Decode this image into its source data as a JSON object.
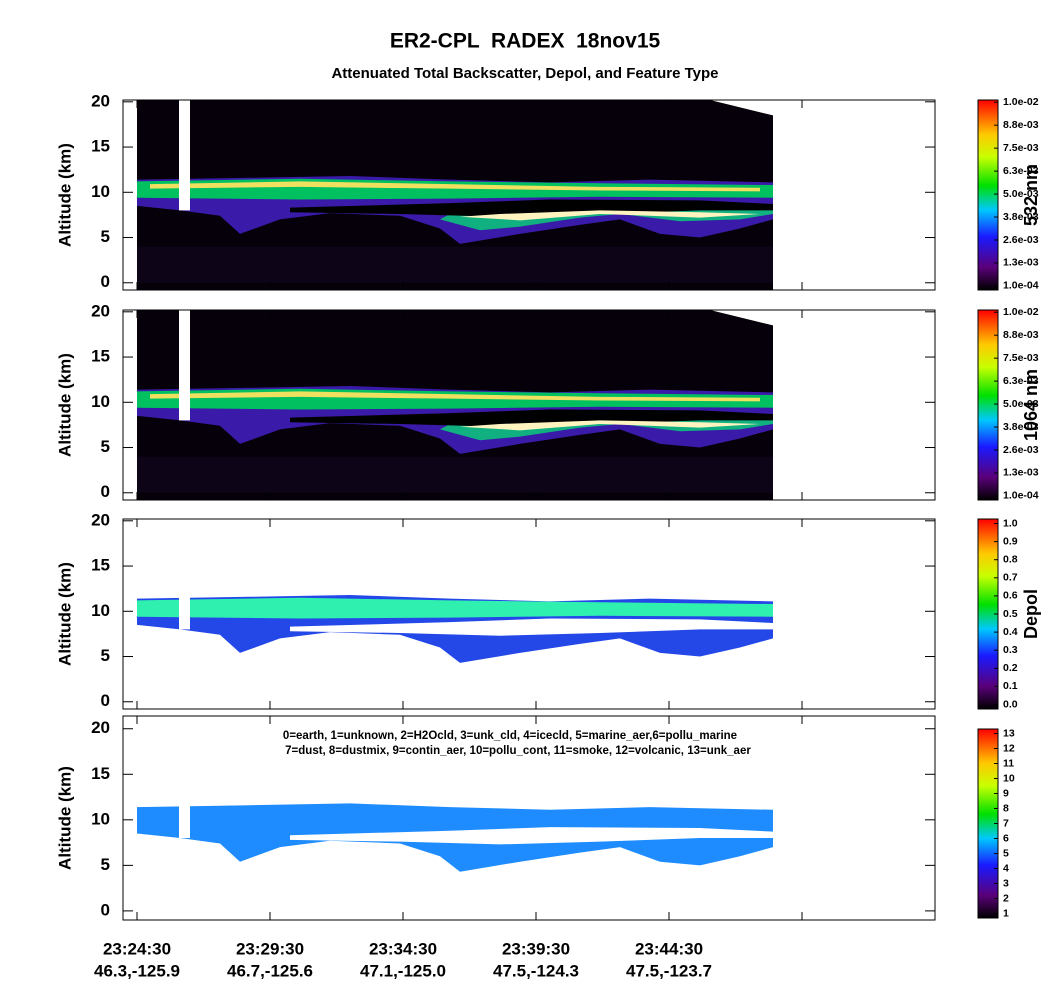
{
  "title": "ER2-CPL  RADEX  18nov15",
  "subtitle": "Attenuated Total Backscatter, Depol, and Feature Type",
  "x_axis": {
    "times": [
      "23:24:30",
      "23:29:30",
      "23:34:30",
      "23:39:30",
      "23:44:30",
      null,
      null
    ],
    "locations": [
      "46.3,-125.9",
      "46.7,-125.6",
      "47.1,-125.0",
      "47.5,-124.3",
      "47.5,-123.7",
      null,
      null
    ]
  },
  "chart_data": [
    {
      "type": "curtain",
      "ylabel": "Altitude (km)",
      "ylim": [
        -0.8,
        20.2
      ],
      "yticks": [
        0,
        5,
        10,
        15,
        20
      ],
      "colorbar": {
        "label": "532 nm",
        "lim": [
          -0.00012,
          0.01012
        ],
        "ticks": [
          {
            "value": 0.0001,
            "label": "1.0e-04"
          },
          {
            "value": 0.0013375,
            "label": "1.3e-03"
          },
          {
            "value": 0.002575,
            "label": "2.6e-03"
          },
          {
            "value": 0.0038125,
            "label": "3.8e-03"
          },
          {
            "value": 0.00505,
            "label": "5.0e-03"
          },
          {
            "value": 0.0062875,
            "label": "6.3e-03"
          },
          {
            "value": 0.007525,
            "label": "7.5e-03"
          },
          {
            "value": 0.0087625,
            "label": "8.8e-03"
          },
          {
            "value": 0.01,
            "label": "1.0e-02"
          }
        ]
      }
    },
    {
      "type": "curtain",
      "ylabel": "Altitude (km)",
      "ylim": [
        -0.8,
        20.2
      ],
      "yticks": [
        0,
        5,
        10,
        15,
        20
      ],
      "colorbar": {
        "label": "1064 nm",
        "lim": [
          -0.00012,
          0.01012
        ],
        "ticks": [
          {
            "value": 0.0001,
            "label": "1.0e-04"
          },
          {
            "value": 0.0013375,
            "label": "1.3e-03"
          },
          {
            "value": 0.002575,
            "label": "2.6e-03"
          },
          {
            "value": 0.0038125,
            "label": "3.8e-03"
          },
          {
            "value": 0.00505,
            "label": "5.0e-03"
          },
          {
            "value": 0.0062875,
            "label": "6.3e-03"
          },
          {
            "value": 0.007525,
            "label": "7.5e-03"
          },
          {
            "value": 0.0087625,
            "label": "8.8e-03"
          },
          {
            "value": 0.01,
            "label": "1.0e-02"
          }
        ]
      }
    },
    {
      "type": "curtain",
      "ylabel": "Altitude (km)",
      "ylim": [
        -0.8,
        20.2
      ],
      "yticks": [
        0,
        5,
        10,
        15,
        20
      ],
      "colorbar": {
        "label": "Depol",
        "lim": [
          -0.025,
          1.025
        ],
        "ticks": [
          {
            "value": 0,
            "label": "0.0"
          },
          {
            "value": 0.1,
            "label": "0.1"
          },
          {
            "value": 0.2,
            "label": "0.2"
          },
          {
            "value": 0.3,
            "label": "0.3"
          },
          {
            "value": 0.4,
            "label": "0.4"
          },
          {
            "value": 0.5,
            "label": "0.5"
          },
          {
            "value": 0.6,
            "label": "0.6"
          },
          {
            "value": 0.7,
            "label": "0.7"
          },
          {
            "value": 0.8,
            "label": "0.8"
          },
          {
            "value": 0.9,
            "label": "0.9"
          },
          {
            "value": 1,
            "label": "1.0"
          }
        ]
      }
    },
    {
      "type": "curtain",
      "ylabel": "Altitude (km)",
      "ylim": [
        -1,
        21.4
      ],
      "yticks": [
        0,
        5,
        10,
        15,
        20
      ],
      "annotation": [
        "0=earth, 1=unknown, 2=H2Ocld, 3=unk_cld, 4=icecld, 5=marine_aer,6=pollu_marine",
        "7=dust, 8=dustmix, 9=contin_aer, 10=pollu_cont, 11=smoke, 12=volcanic, 13=unk_aer"
      ],
      "colorbar": {
        "lim": [
          0.7,
          13.3
        ],
        "ticks": [
          1,
          2,
          3,
          4,
          5,
          6,
          7,
          8,
          9,
          10,
          11,
          12,
          13
        ]
      }
    }
  ]
}
